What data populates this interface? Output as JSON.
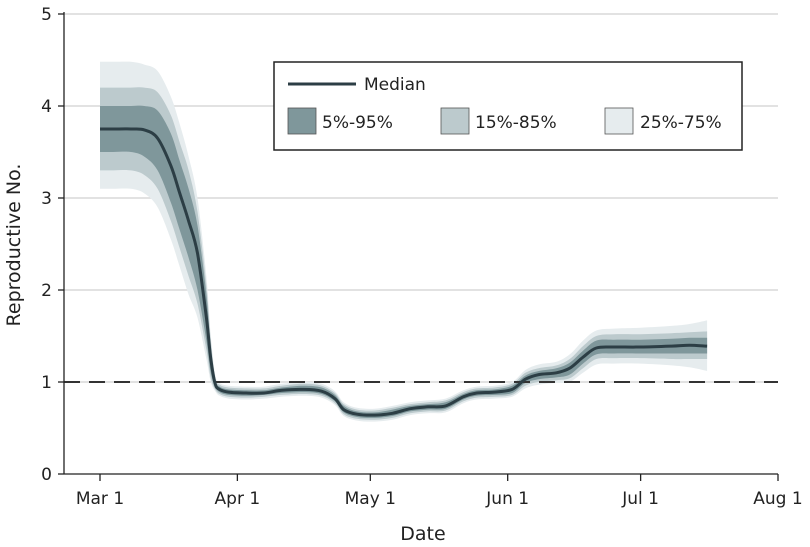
{
  "chart_data": {
    "type": "area",
    "xlabel": "Date",
    "ylabel": "Reproductive No.",
    "x_tick_labels": [
      "Mar 1",
      "Apr 1",
      "May 1",
      "Jun 1",
      "Jul 1",
      "Aug 1"
    ],
    "x_tick_days": [
      0,
      31,
      61,
      92,
      122,
      153
    ],
    "y_ticks": [
      0,
      1,
      2,
      3,
      4,
      5
    ],
    "ylim": [
      0,
      5
    ],
    "reference_line": 1,
    "grid": "horizontal",
    "legend_position": "top-right",
    "legend": {
      "median": "Median",
      "bands": [
        "5%-95%",
        "15%-85%",
        "25%-75%"
      ]
    },
    "colors": {
      "median": "#2c3e45",
      "band_5_95": "#7f979b",
      "band_15_85": "#bccacd",
      "band_25_75": "#e6ecee",
      "grid": "#d8d8d8",
      "reference": "#333333"
    },
    "x_dates": [
      "2020-03-01",
      "2020-03-04",
      "2020-03-08",
      "2020-03-11",
      "2020-03-14",
      "2020-03-17",
      "2020-03-19",
      "2020-03-21",
      "2020-03-23",
      "2020-03-25",
      "2020-03-26",
      "2020-03-27",
      "2020-03-28",
      "2020-03-30",
      "2020-04-03",
      "2020-04-07",
      "2020-04-11",
      "2020-04-16",
      "2020-04-20",
      "2020-04-23",
      "2020-04-25",
      "2020-04-28",
      "2020-05-02",
      "2020-05-06",
      "2020-05-10",
      "2020-05-14",
      "2020-05-18",
      "2020-05-22",
      "2020-05-25",
      "2020-05-29",
      "2020-06-02",
      "2020-06-05",
      "2020-06-08",
      "2020-06-12",
      "2020-06-15",
      "2020-06-18",
      "2020-06-21",
      "2020-06-25",
      "2020-07-01",
      "2020-07-08",
      "2020-07-12",
      "2020-07-16"
    ],
    "median": [
      3.75,
      3.75,
      3.75,
      3.74,
      3.65,
      3.35,
      3.05,
      2.75,
      2.4,
      1.7,
      1.25,
      0.98,
      0.92,
      0.89,
      0.88,
      0.88,
      0.91,
      0.92,
      0.9,
      0.82,
      0.7,
      0.65,
      0.64,
      0.66,
      0.71,
      0.73,
      0.74,
      0.84,
      0.88,
      0.89,
      0.92,
      1.03,
      1.08,
      1.1,
      1.15,
      1.27,
      1.37,
      1.38,
      1.38,
      1.39,
      1.4,
      1.39
    ],
    "p5": [
      3.5,
      3.5,
      3.5,
      3.45,
      3.3,
      2.95,
      2.65,
      2.35,
      2.0,
      1.45,
      1.1,
      0.95,
      0.89,
      0.86,
      0.85,
      0.86,
      0.88,
      0.89,
      0.87,
      0.79,
      0.67,
      0.62,
      0.61,
      0.63,
      0.68,
      0.7,
      0.71,
      0.81,
      0.85,
      0.86,
      0.88,
      0.99,
      1.03,
      1.05,
      1.08,
      1.2,
      1.3,
      1.31,
      1.31,
      1.31,
      1.31,
      1.31
    ],
    "p95": [
      4.0,
      4.0,
      4.0,
      4.0,
      3.95,
      3.7,
      3.4,
      3.1,
      2.7,
      1.95,
      1.38,
      1.02,
      0.95,
      0.92,
      0.91,
      0.91,
      0.94,
      0.96,
      0.94,
      0.86,
      0.74,
      0.68,
      0.67,
      0.7,
      0.74,
      0.76,
      0.78,
      0.87,
      0.91,
      0.92,
      0.96,
      1.07,
      1.12,
      1.15,
      1.21,
      1.34,
      1.45,
      1.46,
      1.46,
      1.47,
      1.48,
      1.48
    ],
    "p15": [
      3.3,
      3.3,
      3.3,
      3.25,
      3.1,
      2.75,
      2.45,
      2.15,
      1.85,
      1.35,
      1.04,
      0.92,
      0.87,
      0.84,
      0.83,
      0.84,
      0.86,
      0.87,
      0.85,
      0.77,
      0.65,
      0.6,
      0.59,
      0.61,
      0.66,
      0.68,
      0.69,
      0.79,
      0.83,
      0.84,
      0.86,
      0.96,
      1.0,
      1.02,
      1.04,
      1.15,
      1.25,
      1.26,
      1.26,
      1.25,
      1.25,
      1.25
    ],
    "p85": [
      4.2,
      4.2,
      4.2,
      4.2,
      4.15,
      3.9,
      3.6,
      3.3,
      2.85,
      2.05,
      1.45,
      1.05,
      0.97,
      0.94,
      0.93,
      0.93,
      0.96,
      0.98,
      0.96,
      0.88,
      0.76,
      0.7,
      0.69,
      0.72,
      0.76,
      0.78,
      0.8,
      0.89,
      0.93,
      0.94,
      0.98,
      1.1,
      1.15,
      1.18,
      1.25,
      1.39,
      1.5,
      1.52,
      1.52,
      1.53,
      1.54,
      1.55
    ],
    "p25": [
      3.1,
      3.1,
      3.1,
      3.05,
      2.9,
      2.55,
      2.25,
      1.95,
      1.7,
      1.25,
      1.0,
      0.9,
      0.85,
      0.82,
      0.81,
      0.82,
      0.84,
      0.85,
      0.83,
      0.75,
      0.63,
      0.58,
      0.57,
      0.59,
      0.64,
      0.66,
      0.67,
      0.77,
      0.81,
      0.82,
      0.84,
      0.93,
      0.97,
      0.99,
      1.0,
      1.1,
      1.19,
      1.2,
      1.2,
      1.18,
      1.16,
      1.12
    ],
    "p75": [
      4.48,
      4.48,
      4.48,
      4.45,
      4.38,
      4.1,
      3.8,
      3.45,
      3.0,
      2.15,
      1.5,
      1.08,
      0.99,
      0.96,
      0.95,
      0.95,
      0.98,
      1.0,
      0.98,
      0.9,
      0.78,
      0.72,
      0.71,
      0.74,
      0.78,
      0.8,
      0.82,
      0.91,
      0.95,
      0.96,
      1.0,
      1.13,
      1.19,
      1.22,
      1.3,
      1.45,
      1.56,
      1.58,
      1.59,
      1.61,
      1.63,
      1.67
    ]
  }
}
